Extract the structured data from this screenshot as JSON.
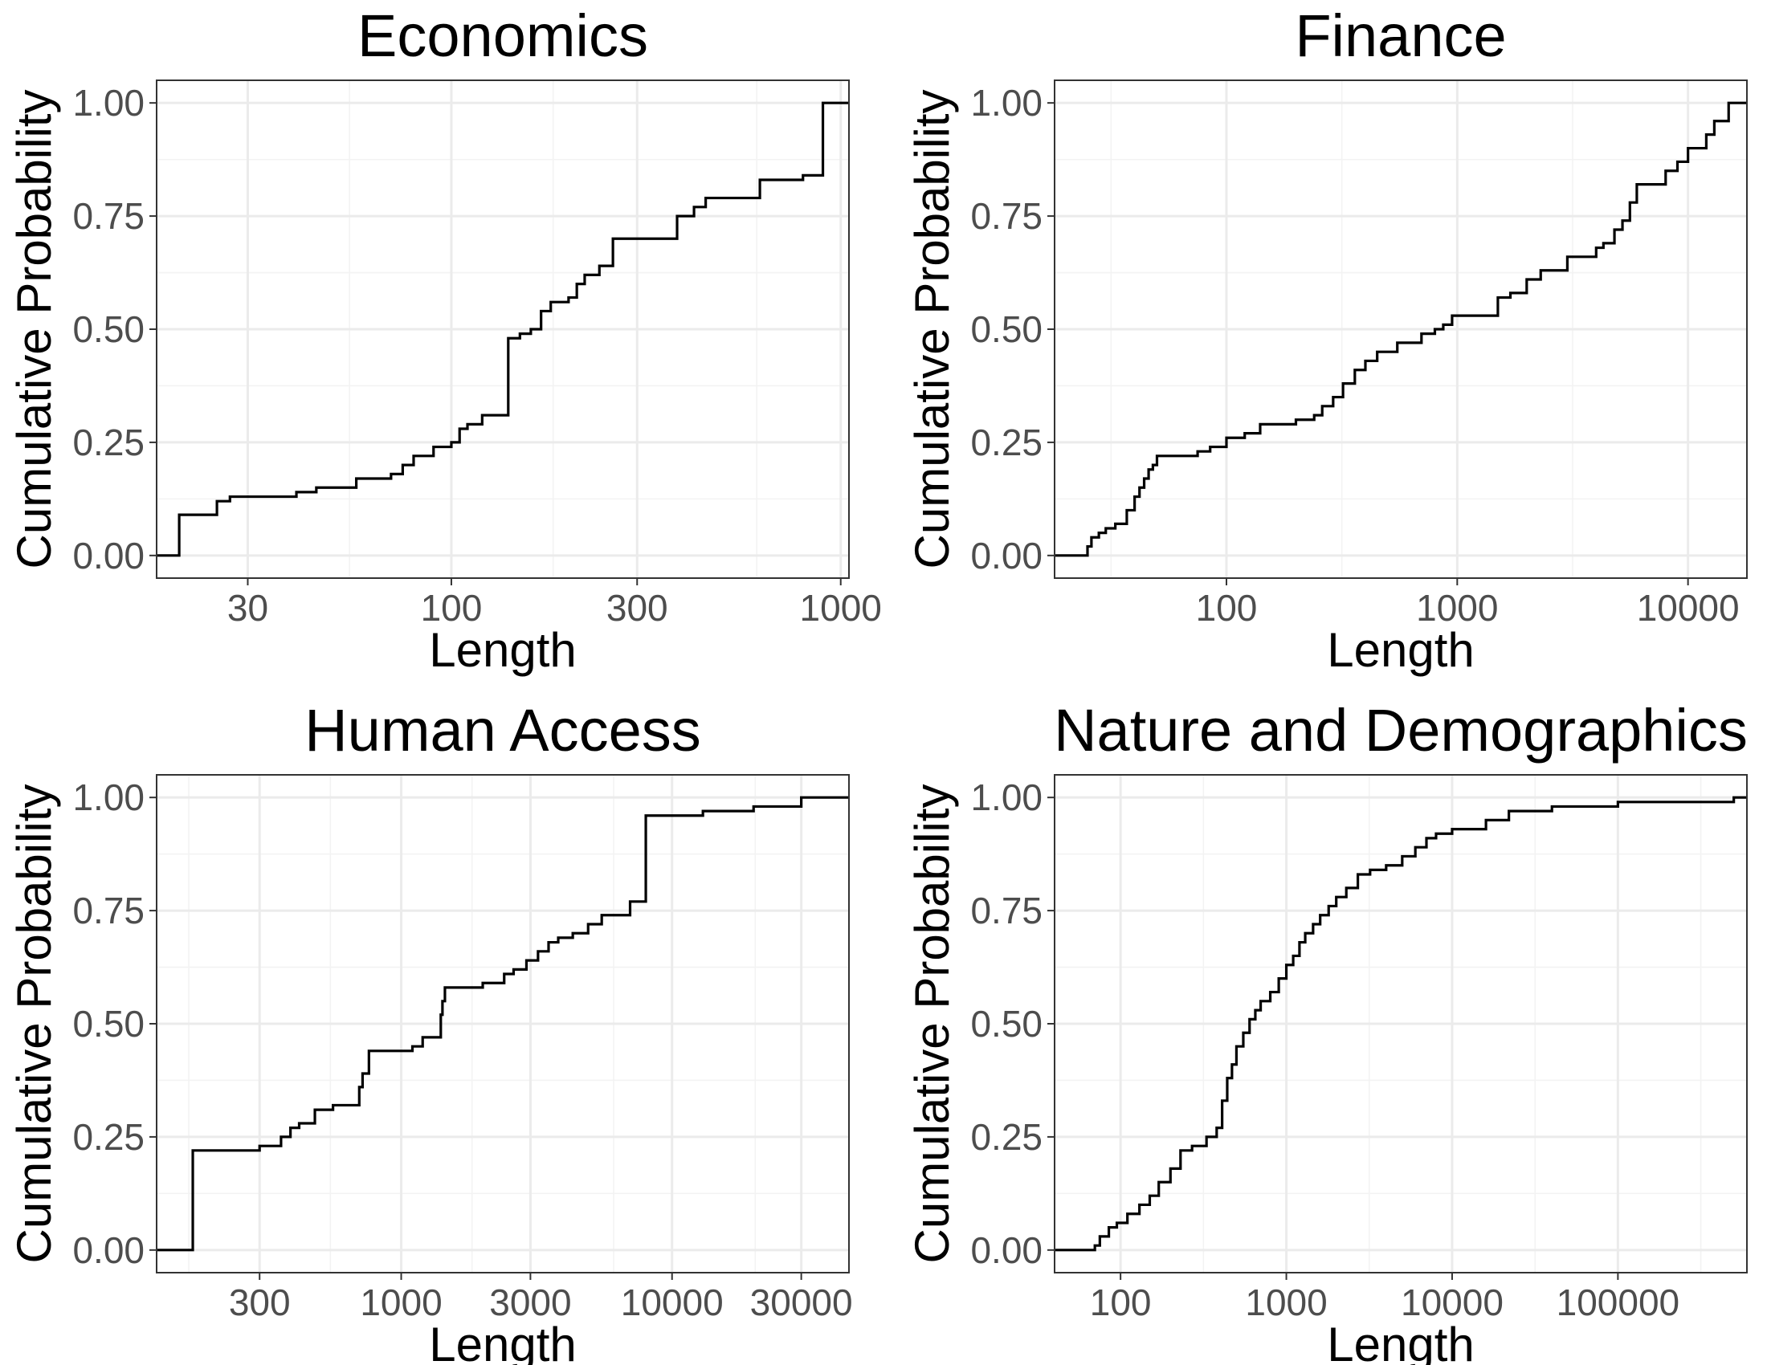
{
  "chart_data": [
    {
      "type": "line",
      "step": true,
      "title": "Economics",
      "xlabel": "Length",
      "ylabel": "Cumulative Probability",
      "xscale": "log10",
      "xlim": [
        17.5,
        1050
      ],
      "ylim": [
        0,
        1
      ],
      "grid": true,
      "legend": "none",
      "x_ticks": [
        30,
        100,
        300,
        1000
      ],
      "x_tick_labels": [
        "30",
        "100",
        "300",
        "1000"
      ],
      "y_ticks": [
        0,
        0.25,
        0.5,
        0.75,
        1
      ],
      "y_tick_labels": [
        "0.00",
        "0.25",
        "0.50",
        "0.75",
        "1.00"
      ],
      "series": [
        {
          "x": [
            20,
            25,
            27,
            40,
            45,
            57,
            70,
            75,
            80,
            90,
            100,
            105,
            110,
            120,
            140,
            150,
            160,
            170,
            180,
            200,
            210,
            220,
            240,
            260,
            380,
            420,
            450,
            620,
            800,
            900,
            1050
          ],
          "y": [
            0.09,
            0.12,
            0.13,
            0.14,
            0.15,
            0.17,
            0.18,
            0.2,
            0.22,
            0.24,
            0.25,
            0.28,
            0.29,
            0.31,
            0.48,
            0.49,
            0.5,
            0.54,
            0.56,
            0.57,
            0.6,
            0.62,
            0.64,
            0.7,
            0.75,
            0.77,
            0.79,
            0.83,
            0.84,
            1.0,
            1.0
          ]
        }
      ]
    },
    {
      "type": "line",
      "step": true,
      "title": "Finance",
      "xlabel": "Length",
      "ylabel": "Cumulative Probability",
      "xscale": "log10",
      "xlim": [
        18,
        18000
      ],
      "ylim": [
        0,
        1
      ],
      "grid": true,
      "legend": "none",
      "x_ticks": [
        100,
        1000,
        10000
      ],
      "x_tick_labels": [
        "100",
        "1000",
        "10000"
      ],
      "y_ticks": [
        0,
        0.25,
        0.5,
        0.75,
        1
      ],
      "y_tick_labels": [
        "0.00",
        "0.25",
        "0.50",
        "0.75",
        "1.00"
      ],
      "series": [
        {
          "x": [
            25,
            26,
            28,
            30,
            33,
            37,
            40,
            42,
            44,
            46,
            48,
            50,
            75,
            85,
            100,
            120,
            140,
            200,
            240,
            260,
            290,
            320,
            360,
            400,
            450,
            550,
            700,
            800,
            870,
            950,
            1500,
            1700,
            2000,
            2300,
            3000,
            4000,
            4300,
            4800,
            5200,
            5600,
            6000,
            8000,
            9000,
            10000,
            12000,
            13000,
            15000,
            18000
          ],
          "y": [
            0.02,
            0.04,
            0.05,
            0.06,
            0.07,
            0.1,
            0.13,
            0.15,
            0.17,
            0.19,
            0.2,
            0.22,
            0.23,
            0.24,
            0.26,
            0.27,
            0.29,
            0.3,
            0.31,
            0.33,
            0.35,
            0.38,
            0.41,
            0.43,
            0.45,
            0.47,
            0.49,
            0.5,
            0.51,
            0.53,
            0.57,
            0.58,
            0.61,
            0.63,
            0.66,
            0.68,
            0.69,
            0.72,
            0.74,
            0.78,
            0.82,
            0.85,
            0.87,
            0.9,
            0.93,
            0.96,
            1.0,
            1.0
          ]
        }
      ]
    },
    {
      "type": "line",
      "step": true,
      "title": "Human Access",
      "xlabel": "Length",
      "ylabel": "Cumulative Probability",
      "xscale": "log10",
      "xlim": [
        125,
        45000
      ],
      "ylim": [
        0,
        1
      ],
      "grid": true,
      "legend": "none",
      "x_ticks": [
        300,
        1000,
        3000,
        10000,
        30000
      ],
      "x_tick_labels": [
        "300",
        "1000",
        "3000",
        "10000",
        "30000"
      ],
      "y_ticks": [
        0,
        0.25,
        0.5,
        0.75,
        1
      ],
      "y_tick_labels": [
        "0.00",
        "0.25",
        "0.50",
        "0.75",
        "1.00"
      ],
      "series": [
        {
          "x": [
            170,
            300,
            360,
            390,
            420,
            480,
            560,
            700,
            720,
            760,
            1100,
            1200,
            1400,
            1420,
            1450,
            2000,
            2400,
            2600,
            2900,
            3200,
            3500,
            3800,
            4300,
            4900,
            5500,
            7000,
            8000,
            8200,
            13000,
            20000,
            30000,
            45000
          ],
          "y": [
            0.22,
            0.23,
            0.25,
            0.27,
            0.28,
            0.31,
            0.32,
            0.36,
            0.39,
            0.44,
            0.45,
            0.47,
            0.52,
            0.55,
            0.58,
            0.59,
            0.61,
            0.62,
            0.64,
            0.66,
            0.68,
            0.69,
            0.7,
            0.72,
            0.74,
            0.77,
            0.96,
            0.96,
            0.97,
            0.98,
            1.0,
            1.0
          ]
        }
      ]
    },
    {
      "type": "line",
      "step": true,
      "title": "Nature and Demographics",
      "xlabel": "Length",
      "ylabel": "Cumulative Probability",
      "xscale": "log10",
      "xlim": [
        40,
        600000
      ],
      "ylim": [
        0,
        1
      ],
      "grid": true,
      "legend": "none",
      "x_ticks": [
        100,
        1000,
        10000,
        100000
      ],
      "x_tick_labels": [
        "100",
        "1000",
        "10000",
        "100000"
      ],
      "y_ticks": [
        0,
        0.25,
        0.5,
        0.75,
        1
      ],
      "y_tick_labels": [
        "0.00",
        "0.25",
        "0.50",
        "0.75",
        "1.00"
      ],
      "series": [
        {
          "x": [
            70,
            75,
            85,
            95,
            110,
            130,
            150,
            170,
            200,
            230,
            270,
            330,
            380,
            410,
            440,
            470,
            500,
            550,
            600,
            650,
            700,
            800,
            900,
            1000,
            1100,
            1200,
            1300,
            1450,
            1600,
            1800,
            2000,
            2300,
            2700,
            3200,
            4000,
            5000,
            6000,
            7000,
            8000,
            10000,
            16000,
            22000,
            40000,
            100000,
            500000,
            600000
          ],
          "y": [
            0.01,
            0.03,
            0.05,
            0.06,
            0.08,
            0.1,
            0.12,
            0.15,
            0.18,
            0.22,
            0.23,
            0.25,
            0.27,
            0.33,
            0.38,
            0.41,
            0.45,
            0.48,
            0.51,
            0.53,
            0.55,
            0.57,
            0.6,
            0.63,
            0.65,
            0.68,
            0.7,
            0.72,
            0.74,
            0.76,
            0.78,
            0.8,
            0.83,
            0.84,
            0.85,
            0.87,
            0.89,
            0.91,
            0.92,
            0.93,
            0.95,
            0.97,
            0.98,
            0.99,
            1.0,
            1.0
          ]
        }
      ]
    }
  ]
}
